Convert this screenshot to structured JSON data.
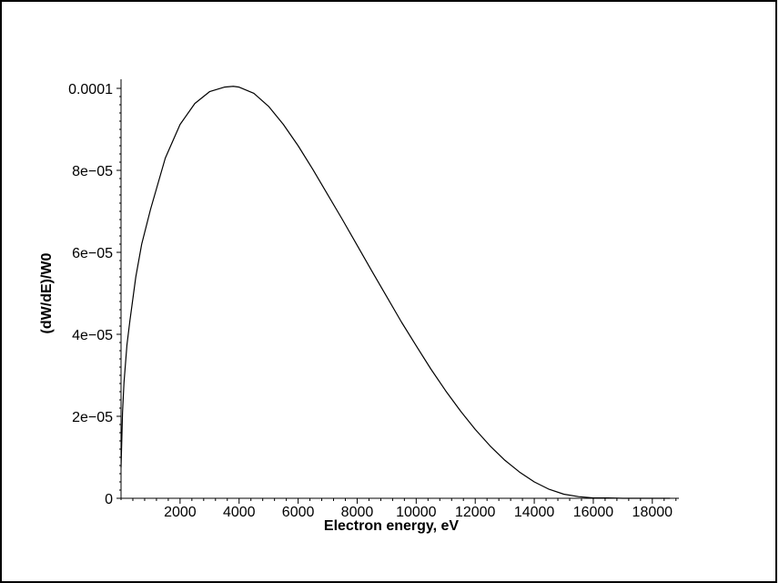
{
  "chart_data": {
    "type": "line",
    "title": "",
    "xlabel": "Electron energy, eV",
    "ylabel": "(dW/dE)/W0",
    "xlim": [
      0,
      18900
    ],
    "ylim": [
      0,
      0.0001
    ],
    "x_ticks": [
      2000,
      4000,
      6000,
      8000,
      10000,
      12000,
      14000,
      16000,
      18000
    ],
    "x_tick_labels": [
      "2000",
      "4000",
      "6000",
      "8000",
      "10000",
      "12000",
      "14000",
      "16000",
      "18000"
    ],
    "y_ticks": [
      0,
      2e-05,
      4e-05,
      6e-05,
      8e-05,
      0.0001
    ],
    "y_tick_labels": [
      "0",
      "2e−05",
      "4e−05",
      "6e−05",
      "8e−05",
      "0.0001"
    ],
    "grid": false,
    "legend": "none",
    "line_color": "#000000",
    "series": [
      {
        "x": [
          0,
          50,
          100,
          200,
          300,
          500,
          700,
          1000,
          1500,
          2000,
          2500,
          3000,
          3500,
          3800,
          4000,
          4500,
          5000,
          5500,
          6000,
          6500,
          7000,
          7500,
          8000,
          8500,
          9000,
          9500,
          10000,
          10500,
          11000,
          11500,
          12000,
          12500,
          13000,
          13500,
          14000,
          14500,
          15000,
          15500,
          16000,
          16500,
          17000,
          17500,
          18000,
          18300,
          18600
        ],
        "y": [
          7.5e-06,
          2.08e-05,
          2.82e-05,
          3.74e-05,
          4.33e-05,
          5.4e-05,
          6.2e-05,
          7.05e-05,
          8.3e-05,
          9.12e-05,
          9.63e-05,
          9.92e-05,
          0.0001003,
          0.0001005,
          0.0001003,
          9.88e-05,
          9.56e-05,
          9.12e-05,
          8.6e-05,
          8.02e-05,
          7.41e-05,
          6.8e-05,
          6.17e-05,
          5.54e-05,
          4.92e-05,
          4.3e-05,
          3.72e-05,
          3.15e-05,
          2.62e-05,
          2.13e-05,
          1.68e-05,
          1.28e-05,
          9.3e-06,
          6.4e-06,
          4e-06,
          2.2e-06,
          1e-06,
          4e-07,
          1e-07,
          1e-07,
          0.0,
          0.0,
          0.0,
          0.0,
          0.0
        ]
      }
    ]
  }
}
